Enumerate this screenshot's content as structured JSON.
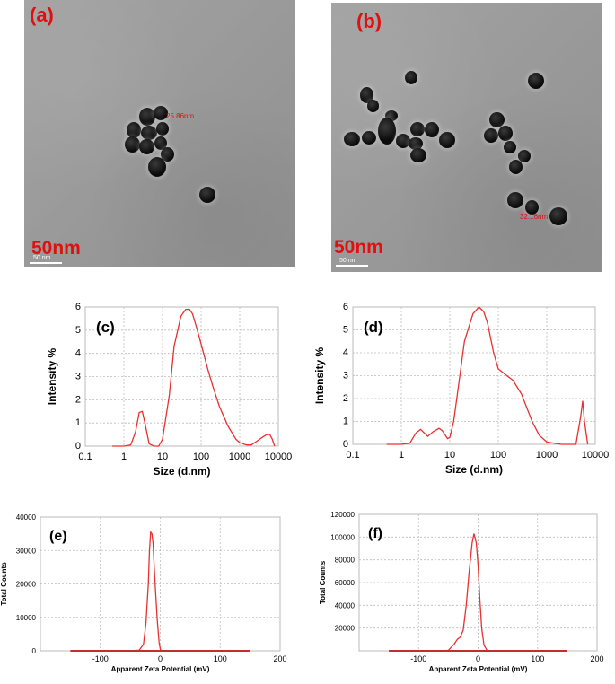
{
  "panels": {
    "a": {
      "label": "(a)",
      "scale_text": "50nm",
      "scale_bar_text": "50 nm",
      "measurement": "25.86nm"
    },
    "b": {
      "label": "(b)",
      "scale_text": "50nm",
      "scale_bar_text": "50 nm",
      "measurement": "32.16nm"
    }
  },
  "chart_data": [
    {
      "panel": "c",
      "label": "(c)",
      "type": "line",
      "xscale": "log",
      "xlabel": "Size (d.nm)",
      "ylabel": "Intensity %",
      "xlim": [
        0.1,
        10000
      ],
      "ylim": [
        0,
        6
      ],
      "xticks": [
        "0.1",
        "1",
        "10",
        "100",
        "1000",
        "10000"
      ],
      "yticks": [
        "0",
        "1",
        "2",
        "3",
        "4",
        "5",
        "6"
      ],
      "color": "#e83030",
      "series": [
        {
          "x": [
            0.5,
            1.0,
            1.5,
            2.0,
            2.5,
            3.0,
            3.5,
            4.5,
            6,
            8,
            10,
            15,
            20,
            30,
            40,
            50,
            60,
            80,
            100,
            150,
            200,
            300,
            500,
            800,
            1000,
            1500,
            2000,
            3000,
            4000,
            5000,
            6000,
            7000,
            8000
          ],
          "y": [
            0,
            0,
            0.05,
            0.6,
            1.45,
            1.5,
            1.0,
            0.1,
            0,
            0,
            0.3,
            2.2,
            4.3,
            5.6,
            5.9,
            5.9,
            5.7,
            5.0,
            4.4,
            3.3,
            2.6,
            1.7,
            0.85,
            0.3,
            0.15,
            0.05,
            0.05,
            0.25,
            0.4,
            0.5,
            0.5,
            0.3,
            0
          ]
        }
      ]
    },
    {
      "panel": "d",
      "label": "(d)",
      "type": "line",
      "xscale": "log",
      "xlabel": "Size (d.nm)",
      "ylabel": "Intensity %",
      "xlim": [
        0.1,
        10000
      ],
      "ylim": [
        0,
        6
      ],
      "xticks": [
        "0.1",
        "1",
        "10",
        "100",
        "1000",
        "10000"
      ],
      "yticks": [
        "0",
        "1",
        "2",
        "3",
        "4",
        "5",
        "6"
      ],
      "color": "#e83030",
      "series": [
        {
          "x": [
            0.5,
            1.0,
            1.5,
            2.0,
            2.5,
            3.5,
            4.5,
            6,
            7,
            9,
            10,
            12,
            15,
            20,
            30,
            40,
            50,
            60,
            80,
            100,
            150,
            200,
            300,
            500,
            700,
            1000,
            2000,
            3000,
            4000,
            5000,
            5500,
            6000,
            7000
          ],
          "y": [
            0,
            0,
            0.05,
            0.5,
            0.65,
            0.35,
            0.55,
            0.7,
            0.6,
            0.25,
            0.3,
            1.0,
            2.5,
            4.5,
            5.7,
            6.0,
            5.8,
            5.3,
            4.0,
            3.3,
            3.0,
            2.8,
            2.2,
            1.0,
            0.4,
            0.1,
            0,
            0,
            0,
            1.2,
            1.9,
            1.0,
            0
          ]
        }
      ]
    },
    {
      "panel": "e",
      "label": "(e)",
      "type": "line",
      "xlabel": "Apparent Zeta Potential (mV)",
      "ylabel": "Total Counts",
      "xlim": [
        -200,
        200
      ],
      "ylim": [
        0,
        40000
      ],
      "xticks": [
        "-100",
        "0",
        "100",
        "200"
      ],
      "yticks": [
        "0",
        "10000",
        "20000",
        "30000",
        "40000"
      ],
      "color": "#e83030",
      "series": [
        {
          "x": [
            -150,
            -50,
            -35,
            -28,
            -24,
            -20,
            -18,
            -16,
            -14,
            -12,
            -10,
            -8,
            -5,
            -2,
            0,
            2,
            5,
            10,
            150
          ],
          "y": [
            0,
            0,
            200,
            2000,
            8000,
            20000,
            30000,
            35500,
            35000,
            32000,
            25000,
            18000,
            9000,
            2500,
            500,
            0,
            0,
            0,
            0
          ]
        }
      ]
    },
    {
      "panel": "f",
      "label": "(f)",
      "type": "line",
      "xlabel": "Apparent Zeta Potential (mV)",
      "ylabel": "Total Counts",
      "xlim": [
        -200,
        200
      ],
      "ylim": [
        0,
        120000
      ],
      "xticks": [
        "-100",
        "0",
        "100",
        "200"
      ],
      "yticks": [
        "20000",
        "40000",
        "60000",
        "80000",
        "100000",
        "120000"
      ],
      "color": "#e83030",
      "series": [
        {
          "x": [
            -150,
            -60,
            -50,
            -40,
            -35,
            -30,
            -25,
            -20,
            -15,
            -10,
            -7,
            -3,
            0,
            3,
            6,
            10,
            15,
            20,
            150
          ],
          "y": [
            0,
            0,
            500,
            6000,
            10000,
            12000,
            18000,
            40000,
            70000,
            95000,
            103000,
            95000,
            75000,
            45000,
            20000,
            5000,
            500,
            0,
            0
          ]
        }
      ]
    }
  ]
}
